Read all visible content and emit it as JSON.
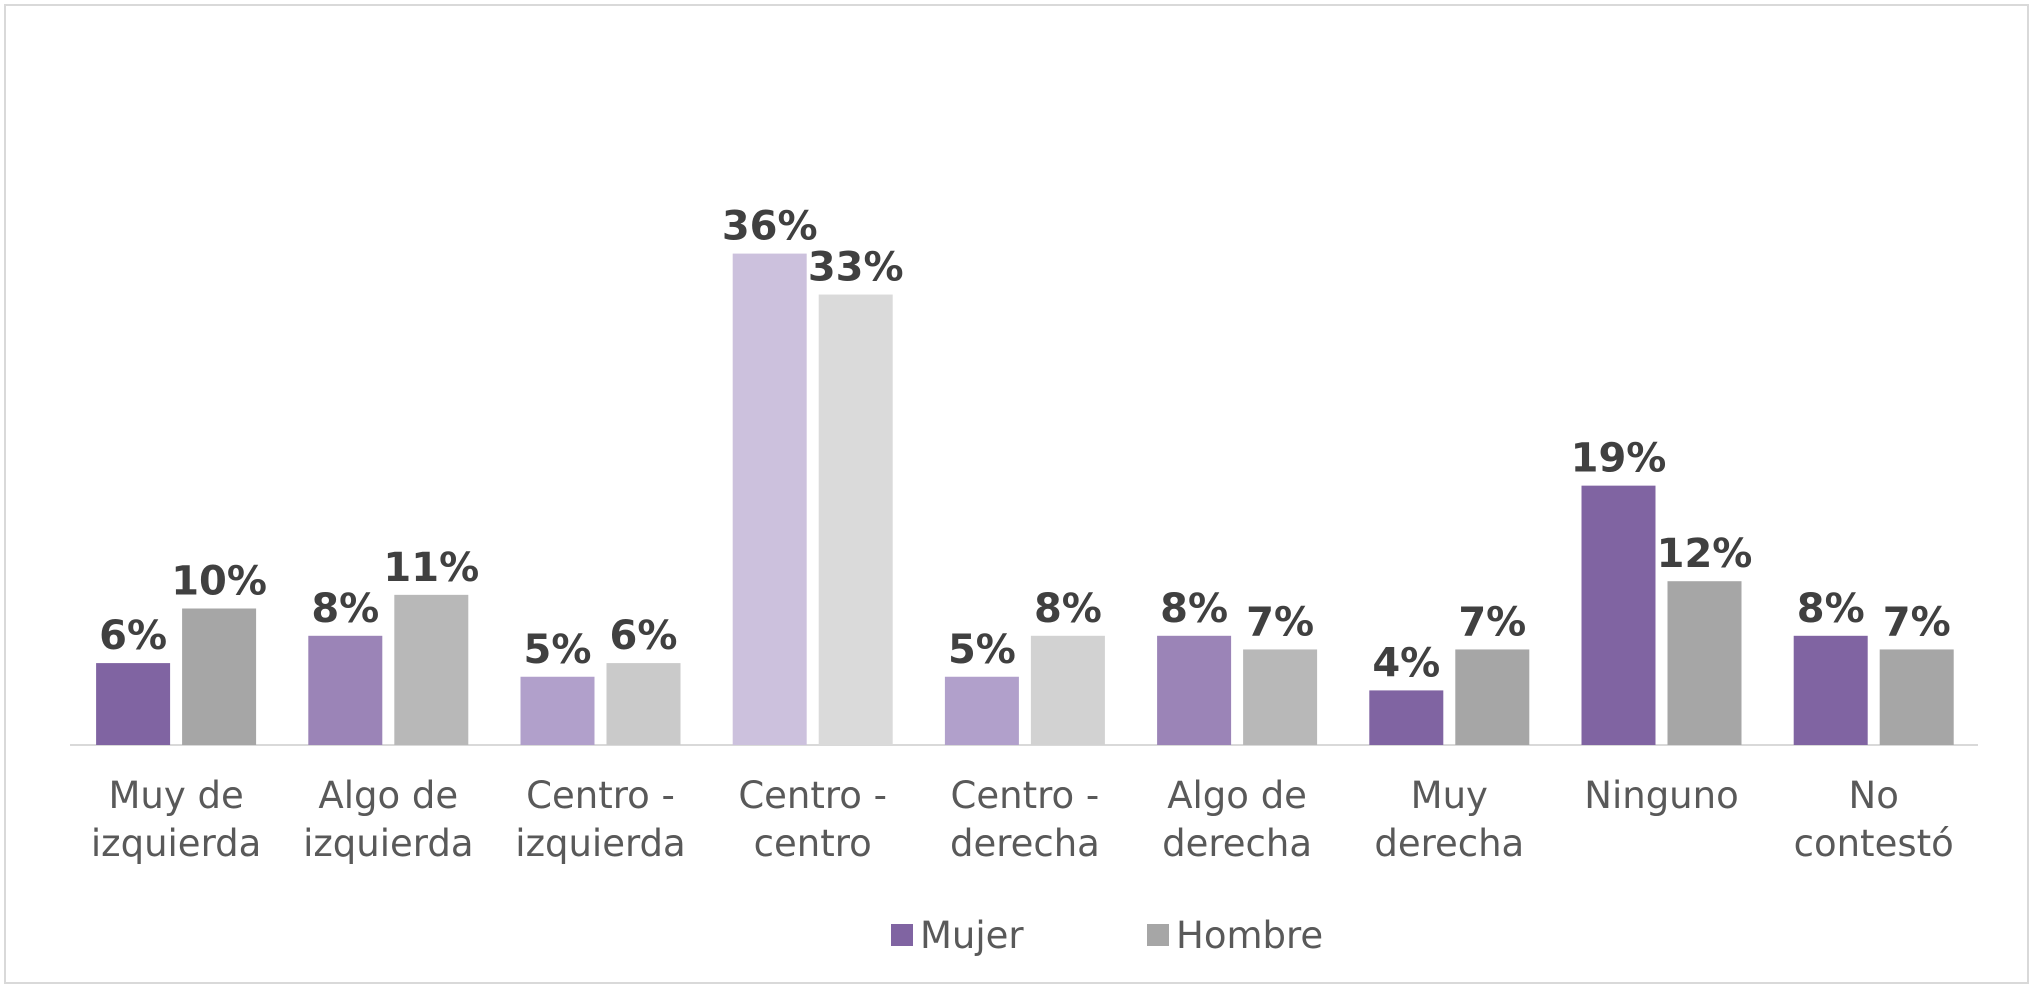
{
  "chart_data": {
    "type": "bar",
    "categories": [
      [
        "Muy de",
        "izquierda"
      ],
      [
        "Algo de",
        "izquierda"
      ],
      [
        "Centro -",
        "izquierda"
      ],
      [
        "Centro -",
        "centro"
      ],
      [
        "Centro -",
        "derecha"
      ],
      [
        "Algo de",
        "derecha"
      ],
      [
        "Muy",
        "derecha"
      ],
      [
        "Ninguno"
      ],
      [
        "No",
        "contestó"
      ]
    ],
    "series": [
      {
        "name": "Mujer",
        "values": [
          6,
          8,
          5,
          36,
          5,
          8,
          4,
          19,
          8
        ],
        "labels": [
          "6%",
          "8%",
          "5%",
          "36%",
          "5%",
          "8%",
          "4%",
          "19%",
          "8%"
        ],
        "colors": [
          "#8064a2",
          "#9b84b7",
          "#b1a0cb",
          "#ccc1dd",
          "#b1a0cb",
          "#9b84b7",
          "#8064a2",
          "#8064a2",
          "#8064a2"
        ],
        "legend_color": "#8064a2"
      },
      {
        "name": "Hombre",
        "values": [
          10,
          11,
          6,
          33,
          8,
          7,
          7,
          12,
          7
        ],
        "labels": [
          "10%",
          "11%",
          "6%",
          "33%",
          "8%",
          "7%",
          "7%",
          "12%",
          "7%"
        ],
        "colors": [
          "#a6a6a6",
          "#b8b8b8",
          "#cacaca",
          "#dadada",
          "#d2d2d2",
          "#b8b8b8",
          "#a6a6a6",
          "#a6a6a6",
          "#a6a6a6"
        ],
        "legend_color": "#a6a6a6"
      }
    ],
    "ylim": [
      0,
      40
    ],
    "title": "",
    "xlabel": "",
    "ylabel": "",
    "grid": false,
    "legend_position": "bottom"
  }
}
